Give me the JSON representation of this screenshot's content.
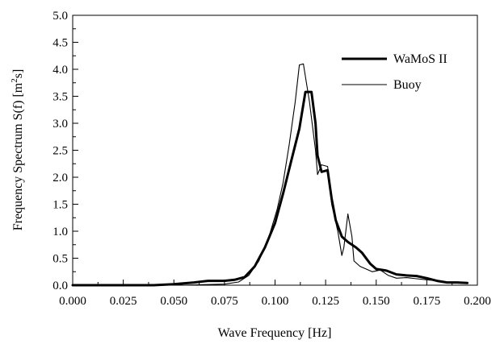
{
  "chart_data": {
    "type": "line",
    "xlabel": "Wave Frequency [Hz]",
    "ylabel_parts": [
      "Frequency Spectrum S(f) [m",
      "2",
      "s]"
    ],
    "xlim": [
      0.0,
      0.2
    ],
    "ylim": [
      0.0,
      5.0
    ],
    "x_ticks": [
      "0.000",
      "0.025",
      "0.050",
      "0.075",
      "0.100",
      "0.125",
      "0.150",
      "0.175",
      "0.200"
    ],
    "y_ticks": [
      "0.0",
      "0.5",
      "1.0",
      "1.5",
      "2.0",
      "2.5",
      "3.0",
      "3.5",
      "4.0",
      "4.5",
      "5.0"
    ],
    "legend_position": "top-right",
    "grid": false,
    "series": [
      {
        "name": "WaMoS II",
        "style": "thick",
        "color": "#000000",
        "points": [
          [
            0.0,
            0.0
          ],
          [
            0.04,
            0.0
          ],
          [
            0.05,
            0.02
          ],
          [
            0.06,
            0.05
          ],
          [
            0.067,
            0.08
          ],
          [
            0.075,
            0.08
          ],
          [
            0.08,
            0.1
          ],
          [
            0.085,
            0.15
          ],
          [
            0.09,
            0.35
          ],
          [
            0.095,
            0.7
          ],
          [
            0.1,
            1.15
          ],
          [
            0.104,
            1.7
          ],
          [
            0.108,
            2.3
          ],
          [
            0.112,
            2.9
          ],
          [
            0.115,
            3.58
          ],
          [
            0.118,
            3.58
          ],
          [
            0.12,
            3.0
          ],
          [
            0.121,
            2.4
          ],
          [
            0.123,
            2.1
          ],
          [
            0.126,
            2.13
          ],
          [
            0.128,
            1.6
          ],
          [
            0.13,
            1.2
          ],
          [
            0.133,
            0.9
          ],
          [
            0.136,
            0.8
          ],
          [
            0.14,
            0.7
          ],
          [
            0.143,
            0.6
          ],
          [
            0.147,
            0.4
          ],
          [
            0.15,
            0.3
          ],
          [
            0.155,
            0.27
          ],
          [
            0.16,
            0.2
          ],
          [
            0.165,
            0.18
          ],
          [
            0.17,
            0.17
          ],
          [
            0.175,
            0.13
          ],
          [
            0.18,
            0.08
          ],
          [
            0.185,
            0.05
          ],
          [
            0.19,
            0.05
          ],
          [
            0.195,
            0.04
          ]
        ]
      },
      {
        "name": "Buoy",
        "style": "thin",
        "color": "#000000",
        "points": [
          [
            0.0,
            0.0
          ],
          [
            0.055,
            0.0
          ],
          [
            0.065,
            0.01
          ],
          [
            0.075,
            0.02
          ],
          [
            0.082,
            0.06
          ],
          [
            0.087,
            0.18
          ],
          [
            0.092,
            0.45
          ],
          [
            0.097,
            0.9
          ],
          [
            0.101,
            1.4
          ],
          [
            0.104,
            1.9
          ],
          [
            0.107,
            2.6
          ],
          [
            0.11,
            3.4
          ],
          [
            0.112,
            4.08
          ],
          [
            0.114,
            4.1
          ],
          [
            0.117,
            3.4
          ],
          [
            0.12,
            2.5
          ],
          [
            0.121,
            2.05
          ],
          [
            0.123,
            2.23
          ],
          [
            0.126,
            2.2
          ],
          [
            0.128,
            1.5
          ],
          [
            0.131,
            1.0
          ],
          [
            0.133,
            0.55
          ],
          [
            0.134,
            0.7
          ],
          [
            0.136,
            1.32
          ],
          [
            0.138,
            0.9
          ],
          [
            0.139,
            0.45
          ],
          [
            0.142,
            0.35
          ],
          [
            0.145,
            0.3
          ],
          [
            0.148,
            0.25
          ],
          [
            0.152,
            0.28
          ],
          [
            0.156,
            0.18
          ],
          [
            0.16,
            0.13
          ],
          [
            0.165,
            0.14
          ],
          [
            0.17,
            0.12
          ],
          [
            0.175,
            0.1
          ],
          [
            0.18,
            0.08
          ],
          [
            0.185,
            0.06
          ],
          [
            0.19,
            0.04
          ],
          [
            0.195,
            0.03
          ]
        ]
      }
    ]
  }
}
